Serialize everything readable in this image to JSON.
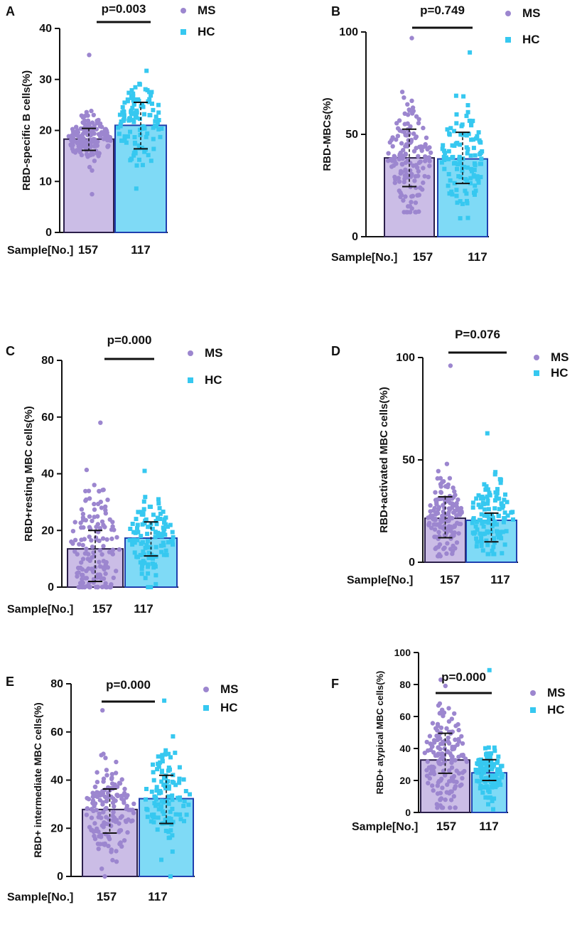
{
  "colors": {
    "ms_fill": "#cbbde6",
    "ms_dot": "#9c86cf",
    "ms_stroke": "#2b1f4a",
    "hc_fill": "#7fdaf6",
    "hc_dot": "#36c8f0",
    "hc_stroke": "#1f3fae",
    "axis": "#111111"
  },
  "legend": {
    "ms": "MS",
    "hc": "HC"
  },
  "chart_data": [
    {
      "panel": "A",
      "type": "bar",
      "ylabel": "RBD-specific B cells(%)",
      "ylim": [
        0,
        40
      ],
      "ticks": [
        0,
        10,
        20,
        30,
        40
      ],
      "pvalue": "p=0.003",
      "sample_label": "Sample[No.]",
      "categories": [
        "157",
        "117"
      ],
      "series": [
        {
          "name": "MS",
          "value": 18.3,
          "sd": [
            16.1,
            20.4
          ],
          "n": 157,
          "min": 7.5,
          "max": 34.8
        },
        {
          "name": "HC",
          "value": 21.0,
          "sd": [
            16.4,
            25.5
          ],
          "n": 117,
          "min": 8.6,
          "max": 31.7
        }
      ]
    },
    {
      "panel": "B",
      "type": "bar",
      "ylabel": "RBD-MBCs(%)",
      "ylim": [
        0,
        100
      ],
      "ticks": [
        0,
        50,
        100
      ],
      "pvalue": "p=0.749",
      "sample_label": "Sample[No.]",
      "categories": [
        "157",
        "117"
      ],
      "series": [
        {
          "name": "MS",
          "value": 38.5,
          "sd": [
            24.5,
            52.5
          ],
          "n": 157,
          "min": 12,
          "max": 97
        },
        {
          "name": "HC",
          "value": 38.0,
          "sd": [
            26.0,
            51.0
          ],
          "n": 117,
          "min": 9,
          "max": 90
        }
      ]
    },
    {
      "panel": "C",
      "type": "bar",
      "ylabel": "RBD+resting MBC cells(%)",
      "ylim": [
        0,
        80
      ],
      "ticks": [
        0,
        20,
        40,
        60,
        80
      ],
      "pvalue": "p=0.000",
      "sample_label": "Sample[No.]",
      "categories": [
        "157",
        "117"
      ],
      "series": [
        {
          "name": "MS",
          "value": 13.5,
          "sd": [
            2.0,
            20.0
          ],
          "n": 157,
          "min": 0,
          "max": 58
        },
        {
          "name": "HC",
          "value": 17.3,
          "sd": [
            11.0,
            23.0
          ],
          "n": 117,
          "min": 0,
          "max": 41
        }
      ]
    },
    {
      "panel": "D",
      "type": "bar",
      "ylabel": "RBD+activated MBC cells(%)",
      "ylim": [
        0,
        100
      ],
      "ticks": [
        0,
        50,
        100
      ],
      "pvalue": "P=0.076",
      "sample_label": "Sample[No.]",
      "categories": [
        "157",
        "117"
      ],
      "series": [
        {
          "name": "MS",
          "value": 21.5,
          "sd": [
            12.0,
            32.0
          ],
          "n": 157,
          "min": 3,
          "max": 96
        },
        {
          "name": "HC",
          "value": 20.5,
          "sd": [
            10.0,
            24.0
          ],
          "n": 117,
          "min": 4,
          "max": 63
        }
      ]
    },
    {
      "panel": "E",
      "type": "bar",
      "ylabel": "RBD+ intermediate MBC cells(%)",
      "ylim": [
        0,
        80
      ],
      "ticks": [
        0,
        20,
        40,
        60,
        80
      ],
      "pvalue": "p=0.000",
      "sample_label": "Sample[No.]",
      "categories": [
        "157",
        "117"
      ],
      "series": [
        {
          "name": "MS",
          "value": 27.8,
          "sd": [
            18.0,
            36.3
          ],
          "n": 157,
          "min": 0,
          "max": 69
        },
        {
          "name": "HC",
          "value": 32.3,
          "sd": [
            22.0,
            42.0
          ],
          "n": 117,
          "min": 0,
          "max": 73
        }
      ]
    },
    {
      "panel": "F",
      "type": "bar",
      "ylabel": "RBD+ atypical MBC cells(%)",
      "ylim": [
        0,
        100
      ],
      "ticks": [
        0,
        20,
        40,
        60,
        80,
        100
      ],
      "pvalue": "p=0.000",
      "sample_label": "Sample[No.]",
      "categories": [
        "157",
        "117"
      ],
      "series": [
        {
          "name": "MS",
          "value": 32.8,
          "sd": [
            24.5,
            49.5
          ],
          "n": 157,
          "min": 3,
          "max": 83
        },
        {
          "name": "HC",
          "value": 24.8,
          "sd": [
            20.0,
            33.0
          ],
          "n": 117,
          "min": 2,
          "max": 89
        }
      ]
    }
  ]
}
